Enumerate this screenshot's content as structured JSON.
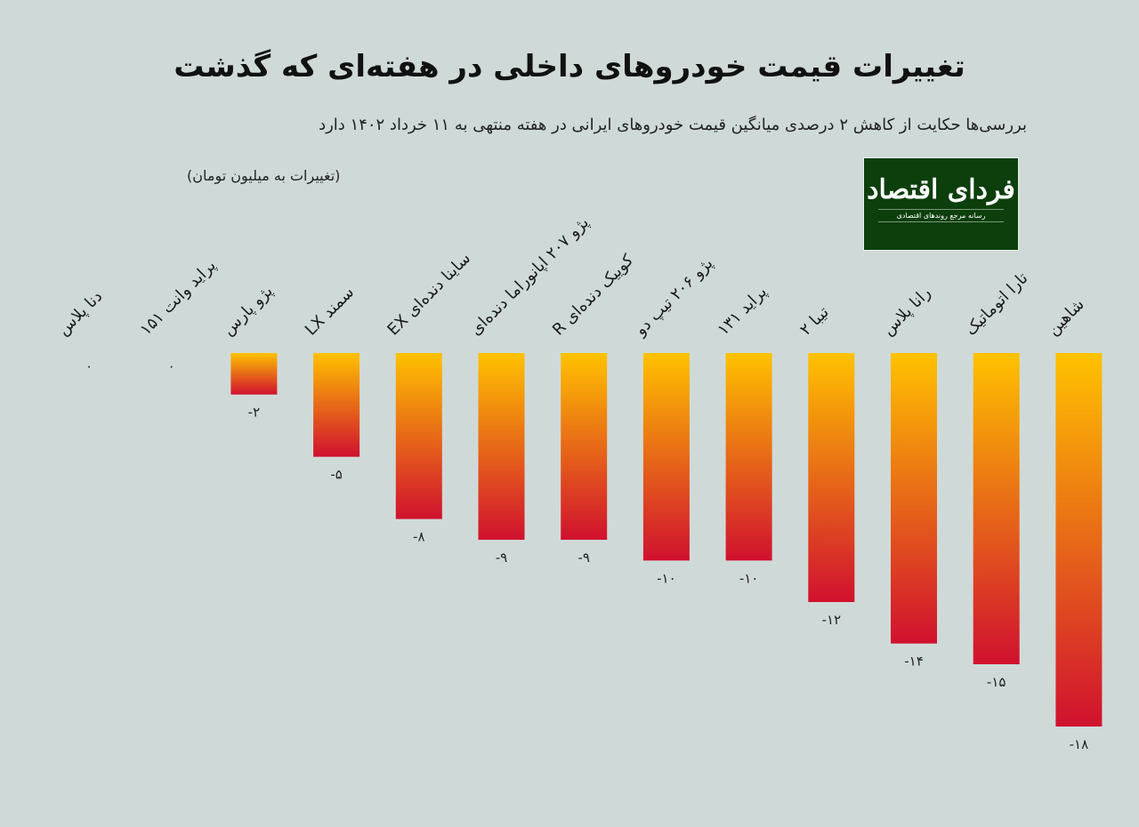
{
  "title": "تغییرات قیمت خودروهای داخلی در هفته‌ای که گذشت",
  "subtitle": "بررسی‌ها حکایت از کاهش ۲ درصدی میانگین قیمت خودروهای ایرانی در هفته منتهی به ۱۱ خرداد ۱۴۰۲ دارد",
  "logo": {
    "name": "فردای اقتصاد",
    "tagline": "رسانه مرجع روندهای اقتصادی"
  },
  "chart_data": {
    "type": "bar",
    "title": "تغییرات قیمت خودروهای داخلی در هفته‌ای که گذشت",
    "unit_note": "(تغییرات به میلیون تومان)",
    "categories": [
      "دنا پلاس",
      "پراید وانت ۱۵۱",
      "پژو پارس",
      "سمند LX",
      "ساینا دنده‌ای EX",
      "پژو ۲۰۷ اپانوراما دنده‌ای",
      "کوییک دنده‌ای R",
      "پژو ۲۰۶ تیپ دو",
      "پراید ۱۳۱",
      "تیبا ۲",
      "رانا پلاس",
      "تارا اتوماتیک",
      "شاهین"
    ],
    "values": [
      0,
      0,
      -2,
      -5,
      -8,
      -9,
      -9,
      -10,
      -10,
      -12,
      -14,
      -15,
      -18
    ],
    "value_labels": [
      "۰",
      "۰",
      "-۲",
      "-۵",
      "-۸",
      "-۹",
      "-۹",
      "-۱۰",
      "-۱۰",
      "-۱۲",
      "-۱۴",
      "-۱۵",
      "-۱۸"
    ],
    "ylim": [
      -18,
      0
    ],
    "grid": false,
    "colors": {
      "bar_top": "#ffc200",
      "bar_bottom": "#d0112f",
      "background": "#cfdad8"
    }
  }
}
